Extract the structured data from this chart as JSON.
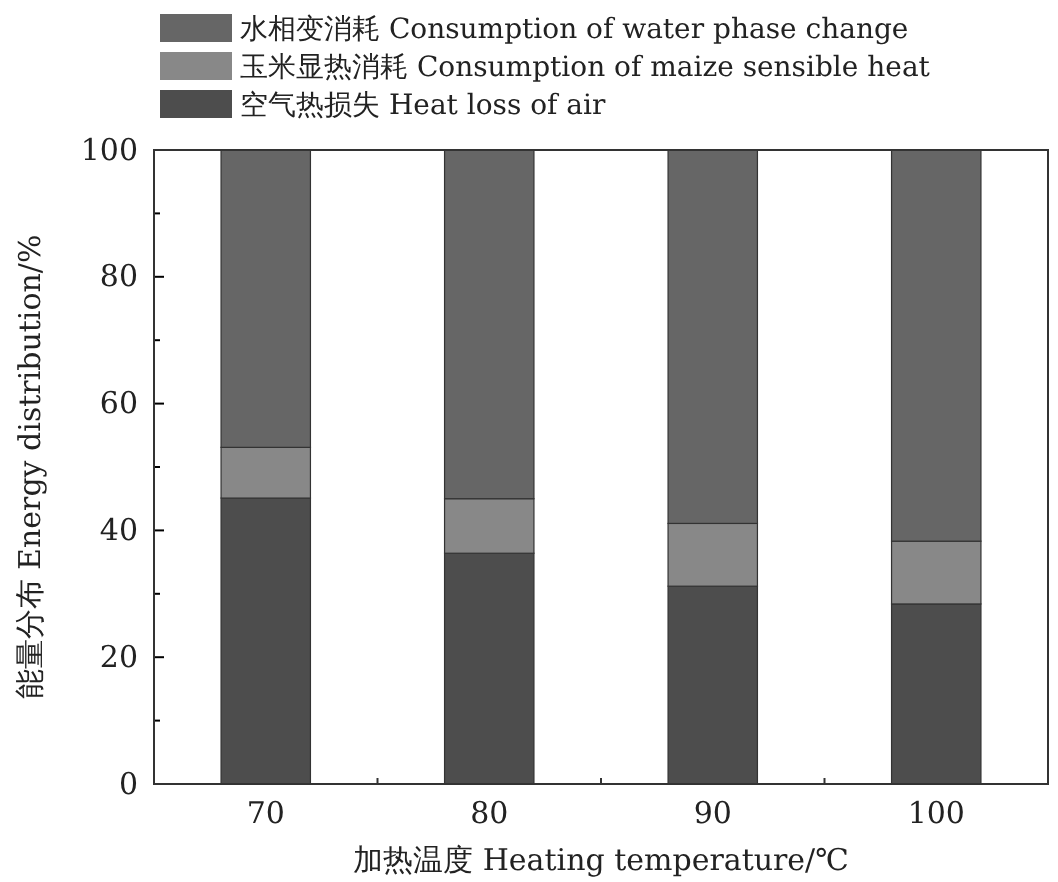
{
  "chart_data": {
    "type": "bar",
    "stacked": true,
    "xlabel": "加热温度 Heating temperature/℃",
    "ylabel": "能量分布 Energy distribution/%",
    "categories": [
      "70",
      "80",
      "90",
      "100"
    ],
    "series": [
      {
        "name": "空气热损失 Heat loss of air",
        "color": "#4d4d4d",
        "values": [
          45.1,
          36.4,
          31.2,
          28.4
        ]
      },
      {
        "name": "玉米显热消耗 Consumption of maize sensible heat",
        "color": "#888888",
        "values": [
          8,
          8.6,
          9.9,
          9.9
        ]
      },
      {
        "name": "水相变消耗 Consumption of water phase change",
        "color": "#666666",
        "values": [
          46.9,
          55,
          58.9,
          61.7
        ]
      }
    ],
    "ylim": [
      0,
      100
    ],
    "yticks": [
      0,
      {
        "value": 10,
        "label": null
      },
      20,
      {
        "value": 30,
        "label": null
      },
      40,
      {
        "value": 50,
        "label": null
      },
      60,
      {
        "value": 70,
        "label": null
      },
      80,
      {
        "value": 90,
        "label": null
      },
      100
    ],
    "legend": "top"
  }
}
